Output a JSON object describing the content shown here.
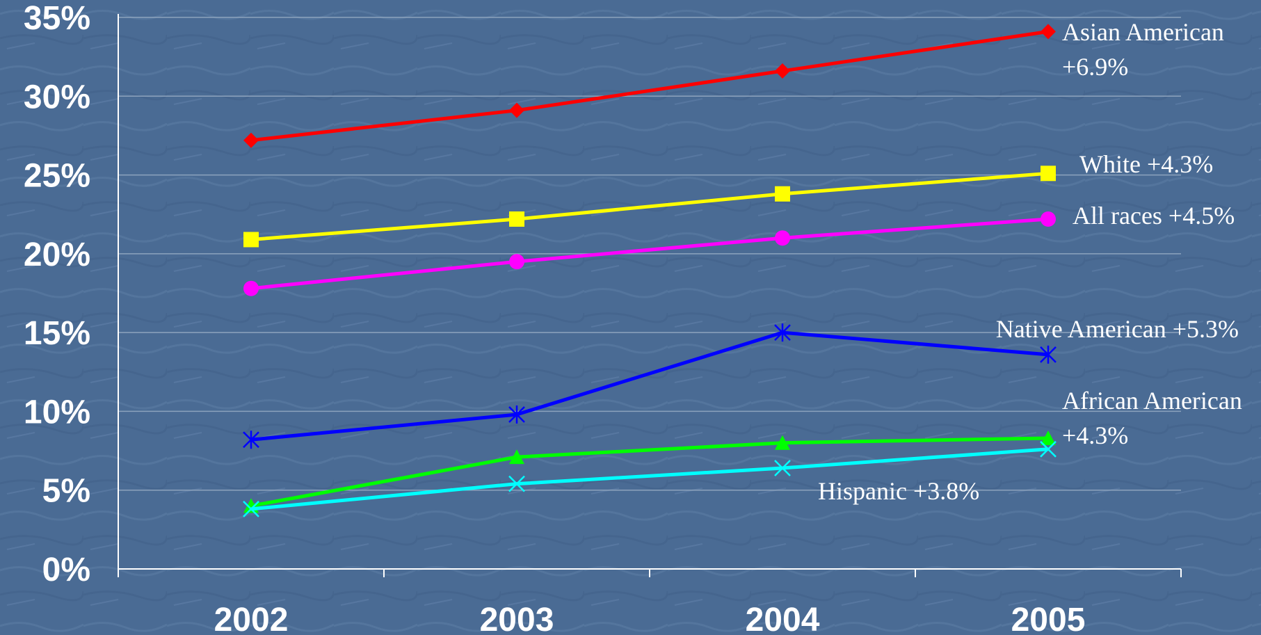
{
  "colors": {
    "background": "#4a6b94",
    "gridline": "#8da3bd",
    "axis": "#ffffff",
    "text": "#ffffff"
  },
  "chart_data": {
    "type": "line",
    "title": "",
    "xlabel": "",
    "ylabel": "",
    "ylim": [
      0,
      35
    ],
    "y_ticks": [
      0,
      5,
      10,
      15,
      20,
      25,
      30,
      35
    ],
    "y_tick_labels": [
      "0%",
      "5%",
      "10%",
      "15%",
      "20%",
      "25%",
      "30%",
      "35%"
    ],
    "categories": [
      "2002",
      "2003",
      "2004",
      "2005"
    ],
    "grid": true,
    "legend": "none",
    "series": [
      {
        "name": "Asian American",
        "change": "+6.9%",
        "color": "#ff0000",
        "marker": "diamond",
        "values": [
          27.2,
          29.1,
          31.6,
          34.1
        ]
      },
      {
        "name": "White",
        "change": "+4.3%",
        "color": "#ffff00",
        "marker": "square",
        "values": [
          20.9,
          22.2,
          23.8,
          25.1
        ]
      },
      {
        "name": "All races",
        "change": "+4.5%",
        "color": "#ff00ff",
        "marker": "circle",
        "values": [
          17.8,
          19.5,
          21.0,
          22.2
        ]
      },
      {
        "name": "Native American",
        "change": "+5.3%",
        "color": "#0000ff",
        "marker": "asterisk",
        "values": [
          8.2,
          9.8,
          15.0,
          13.6
        ]
      },
      {
        "name": "African American",
        "change": "+4.3%",
        "color": "#00ff00",
        "marker": "triangle",
        "values": [
          4.0,
          7.1,
          8.0,
          8.3
        ]
      },
      {
        "name": "Hispanic",
        "change": "+3.8%",
        "color": "#00ffff",
        "marker": "x",
        "values": [
          3.8,
          5.4,
          6.4,
          7.6
        ]
      }
    ]
  }
}
